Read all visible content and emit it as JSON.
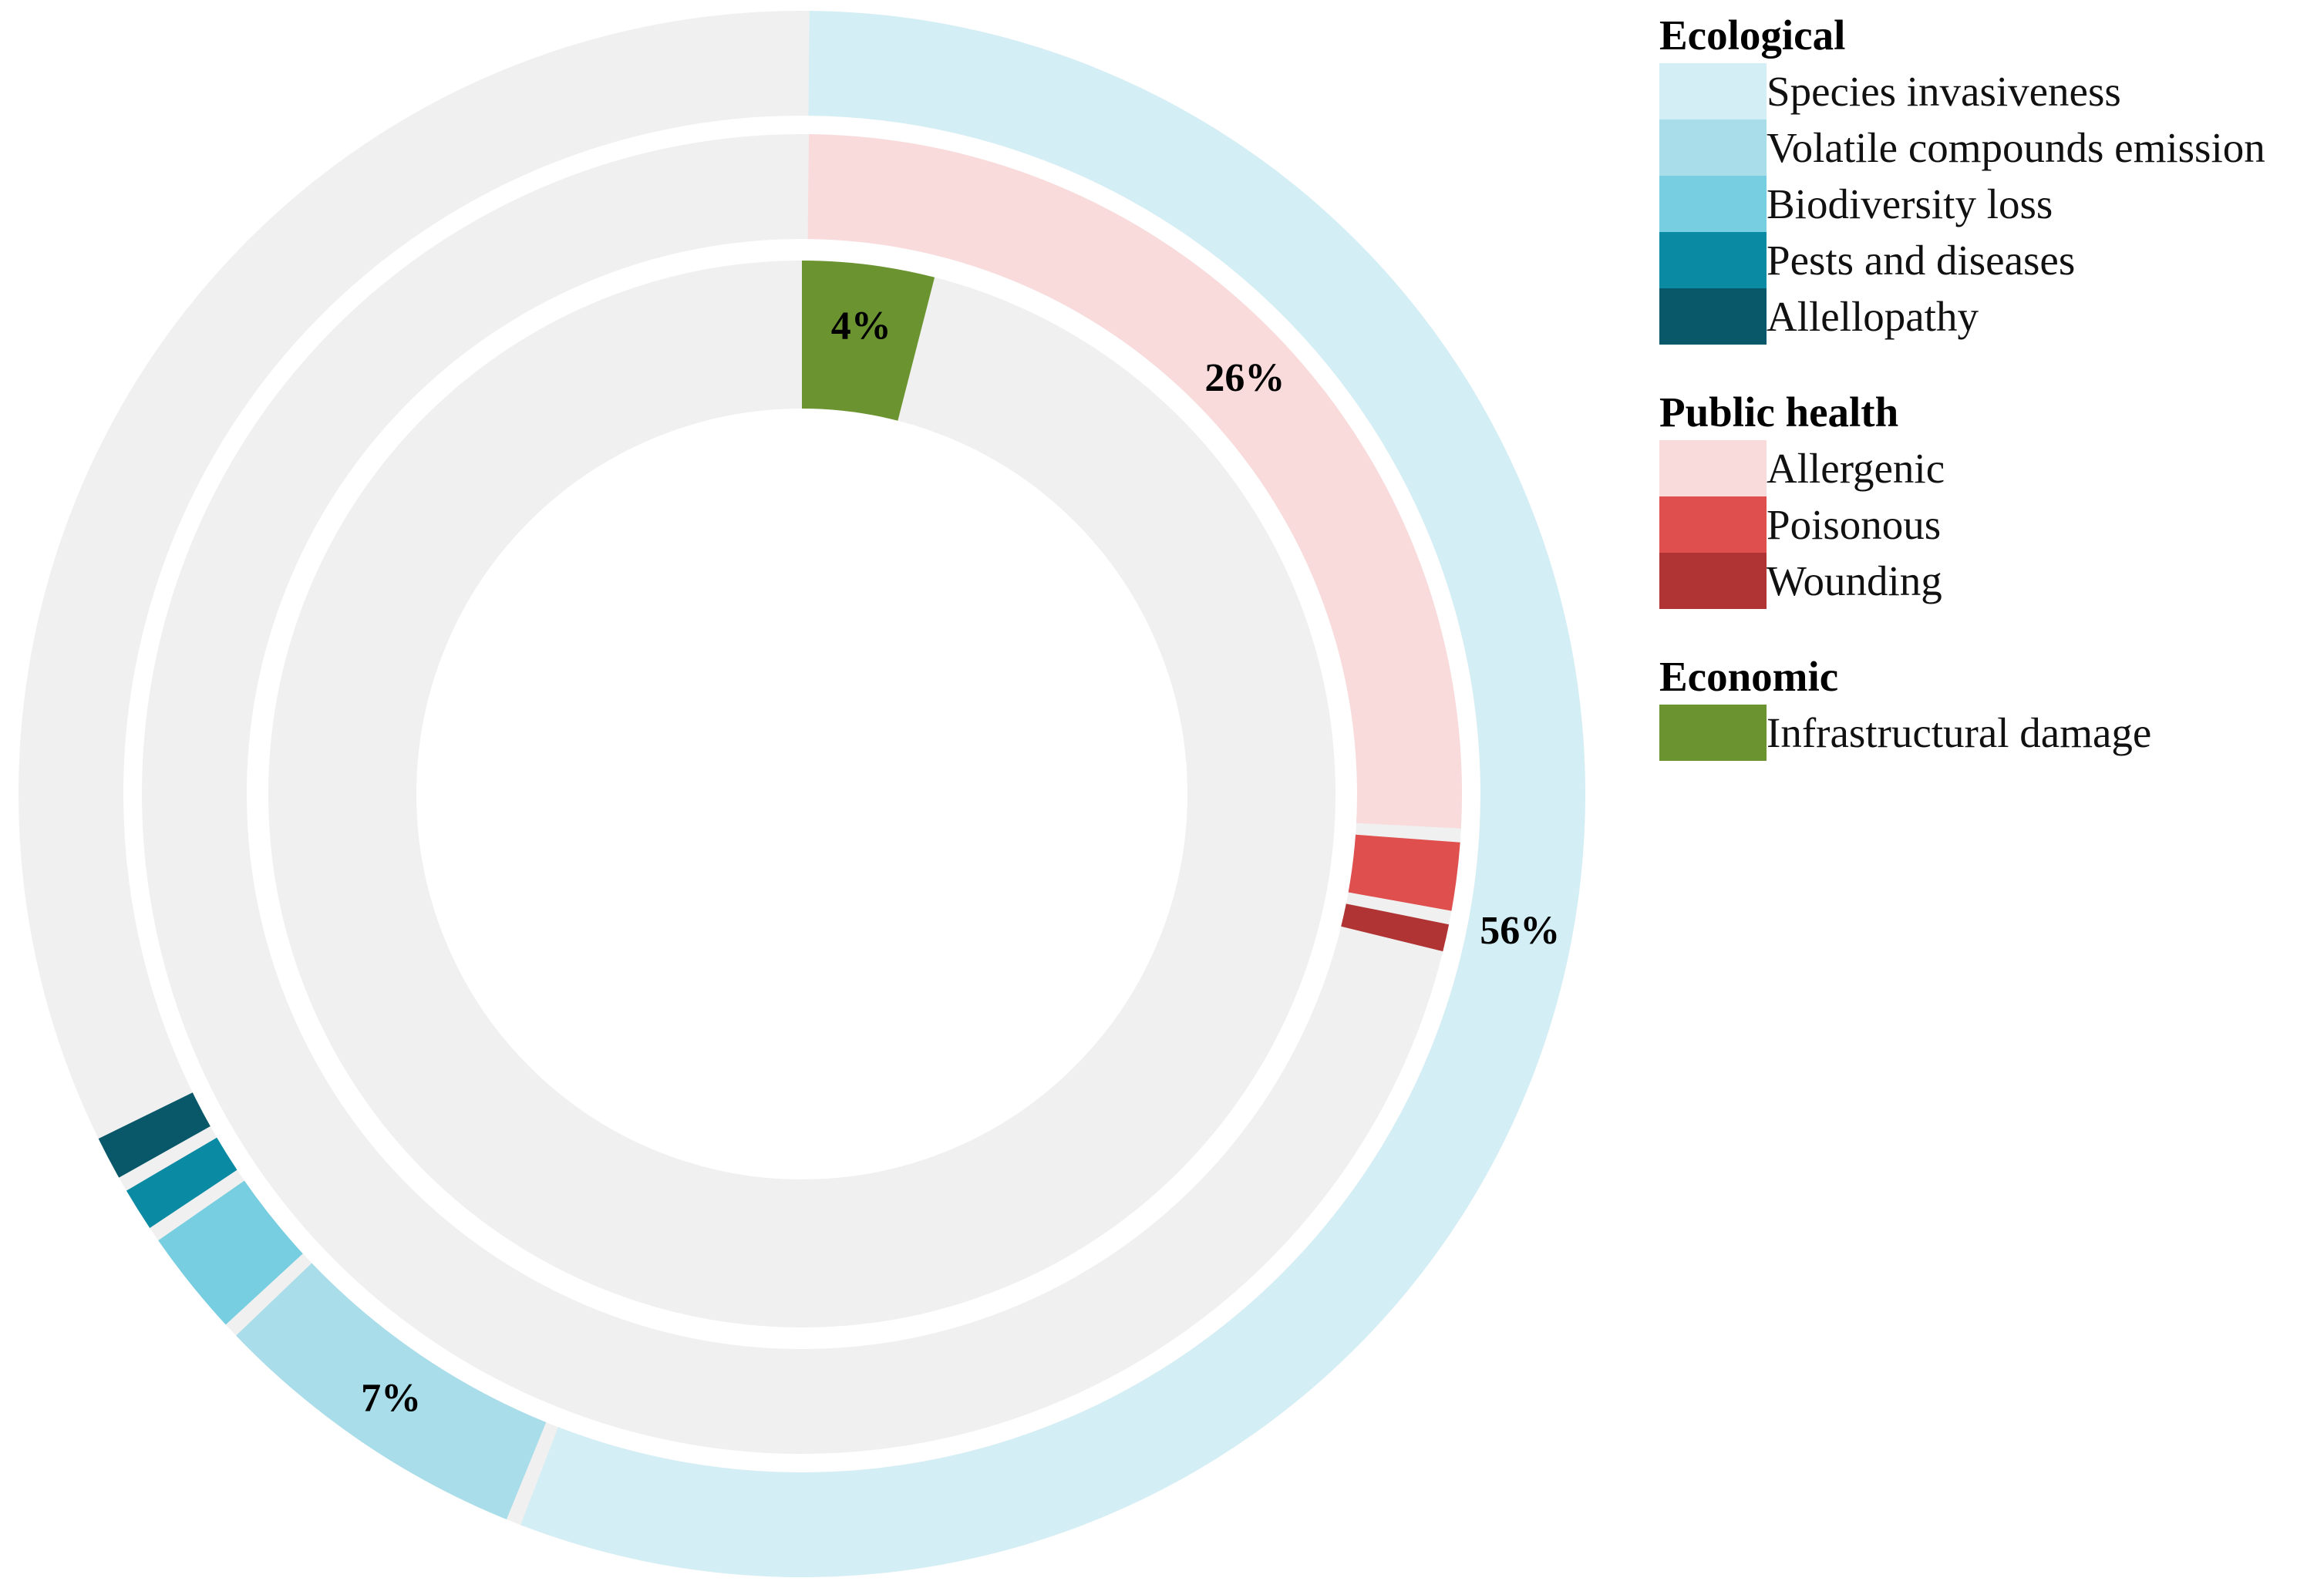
{
  "chart_data": {
    "type": "pie",
    "subtype": "nested-donut",
    "track_color": "#F0F0F0",
    "rings": [
      {
        "ring": "outer",
        "group": "Ecological",
        "segments": [
          {
            "name": "Species invasiveness",
            "value": 56,
            "label": "56%",
            "color": "#D4EEF5"
          },
          {
            "name": "Volatile compounds emission",
            "value": 7,
            "label": "7%",
            "color": "#A8DDE9"
          },
          {
            "name": "Biodiversity loss",
            "value": 2.5,
            "color": "#76CEE0"
          },
          {
            "name": "Pests and diseases",
            "value": 1.2,
            "color": "#0A8AA3"
          },
          {
            "name": "Allellopathy",
            "value": 1.2,
            "color": "#08586A"
          }
        ]
      },
      {
        "ring": "middle",
        "group": "Public health",
        "segments": [
          {
            "name": "Allergenic",
            "value": 26,
            "label": "26%",
            "color": "#F9DBDC"
          },
          {
            "name": "Poisonous",
            "value": 2,
            "color": "#DE4F4E"
          },
          {
            "name": "Wounding",
            "value": 1,
            "color": "#B03434"
          }
        ]
      },
      {
        "ring": "inner",
        "group": "Economic",
        "segments": [
          {
            "name": "Infrastructural damage",
            "value": 4,
            "label": "4%",
            "color": "#6B9430"
          }
        ]
      }
    ],
    "legend": [
      {
        "heading": "Ecological",
        "items": [
          {
            "label": "Species invasiveness",
            "color": "#D4EEF5"
          },
          {
            "label": "Volatile compounds emission",
            "color": "#A8DDE9"
          },
          {
            "label": "Biodiversity loss",
            "color": "#76CEE0"
          },
          {
            "label": "Pests and diseases",
            "color": "#0A8AA3"
          },
          {
            "label": "Allellopathy",
            "color": "#08586A"
          }
        ]
      },
      {
        "heading": "Public health",
        "items": [
          {
            "label": "Allergenic",
            "color": "#F9DBDC"
          },
          {
            "label": "Poisonous",
            "color": "#DE4F4E"
          },
          {
            "label": "Wounding",
            "color": "#B03434"
          }
        ]
      },
      {
        "heading": "Economic",
        "items": [
          {
            "label": "Infrastructural damage",
            "color": "#6B9430"
          }
        ]
      }
    ],
    "legend_position": "right"
  }
}
